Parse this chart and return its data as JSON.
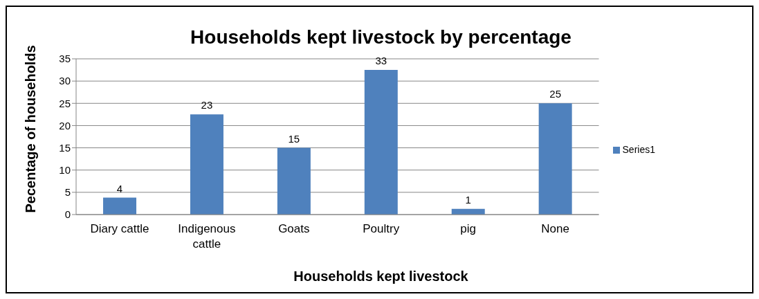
{
  "chart_data": {
    "type": "bar",
    "title": "Households kept livestock by percentage",
    "xlabel": "Households kept livestock",
    "ylabel": "Pecentage of households",
    "categories": [
      "Diary cattle",
      "Indigenous cattle",
      "Goats",
      "Poultry",
      "pig",
      "None"
    ],
    "series": [
      {
        "name": "Series1",
        "color": "#4f81bd",
        "values": [
          3.8,
          22.5,
          15,
          32.5,
          1.3,
          25
        ],
        "value_labels": [
          "4",
          "23",
          "15",
          "33",
          "1",
          "25"
        ]
      }
    ],
    "ylim": [
      0,
      35
    ],
    "yticks": [
      0,
      5,
      10,
      15,
      20,
      25,
      30,
      35
    ],
    "grid": "y",
    "legend": "right"
  }
}
